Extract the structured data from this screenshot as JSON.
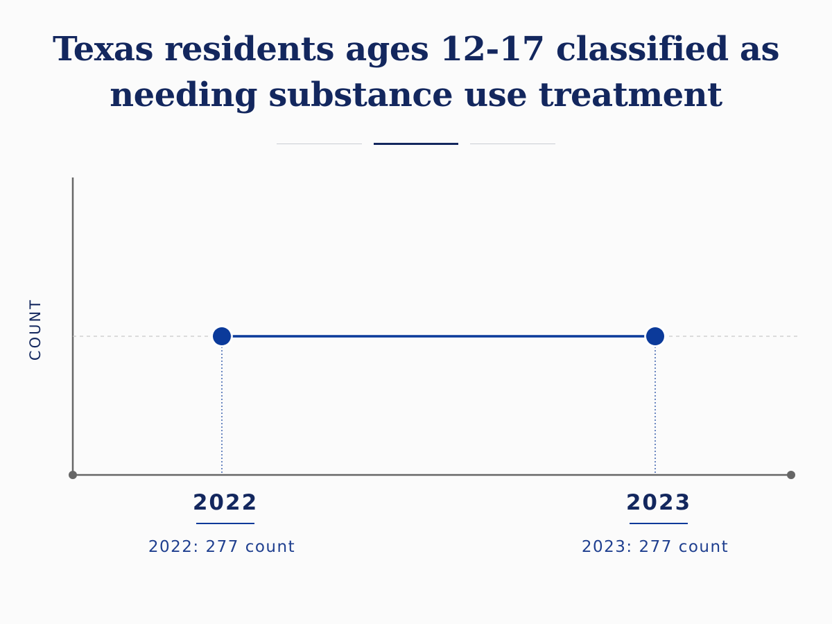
{
  "chart_data": {
    "type": "line",
    "title": "Texas residents ages 12-17 classified as needing substance use treatment",
    "title_lines": [
      "Texas residents ages 12-17 classified as",
      "needing substance use treatment"
    ],
    "xlabel": "",
    "ylabel": "COUNT",
    "categories": [
      "2022",
      "2023"
    ],
    "series": [
      {
        "values": [
          277,
          277
        ]
      }
    ],
    "data_labels": [
      "2022: 277 count",
      "2023: 277 count"
    ],
    "grid": false,
    "legend": "none"
  },
  "colors": {
    "title": "#13275e",
    "series": "#0b3a9a",
    "axis": "#666666",
    "label_dark": "#13275e",
    "label_blue": "#1f3f8f",
    "guide": "#c8c8c8",
    "background": "#fbfbfb"
  }
}
